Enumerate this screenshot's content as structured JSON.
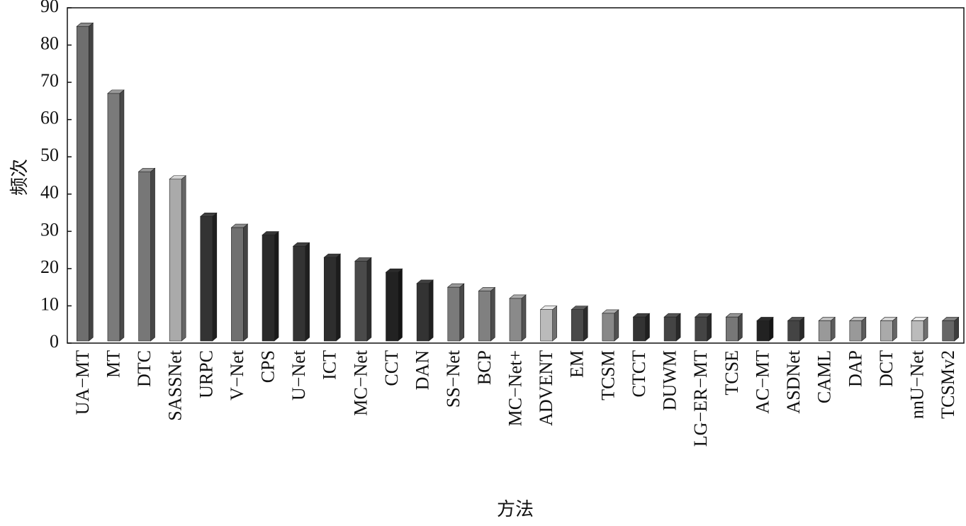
{
  "chart_data": {
    "type": "bar3d",
    "x_label": "方法",
    "y_label": "频次",
    "categories": [
      "UA−MT",
      "MT",
      "DTC",
      "SASSNet",
      "URPC",
      "V−Net",
      "CPS",
      "U−Net",
      "ICT",
      "MC−Net",
      "CCT",
      "DAN",
      "SS−Net",
      "BCP",
      "MC−Net+",
      "ADVENT",
      "EM",
      "TCSM",
      "CTCT",
      "DUWM",
      "LG−ER−MT",
      "TCSE",
      "AC−MT",
      "ASDNet",
      "CAML",
      "DAP",
      "DCT",
      "nnU−Net",
      "TCSMv2"
    ],
    "values": [
      85,
      67,
      46,
      44,
      34,
      31,
      29,
      26,
      23,
      22,
      19,
      16,
      15,
      14,
      12,
      9,
      9,
      8,
      7,
      7,
      7,
      7,
      6,
      6,
      6,
      6,
      6,
      6,
      6
    ],
    "colors": [
      "#6e6e6e",
      "#7a7a7a",
      "#777777",
      "#aaaaaa",
      "#333333",
      "#707070",
      "#2a2a2a",
      "#333333",
      "#2e2e2e",
      "#4a4a4a",
      "#222222",
      "#333333",
      "#7a7a7a",
      "#808080",
      "#8a8a8a",
      "#bbbbbb",
      "#4a4a4a",
      "#888888",
      "#333333",
      "#444444",
      "#444444",
      "#777777",
      "#222222",
      "#444444",
      "#999999",
      "#999999",
      "#aaaaaa",
      "#bbbbbb",
      "#666666"
    ],
    "ylim": [
      0,
      90
    ],
    "yticks": [
      0,
      10,
      20,
      30,
      40,
      50,
      60,
      70,
      80,
      90
    ]
  }
}
